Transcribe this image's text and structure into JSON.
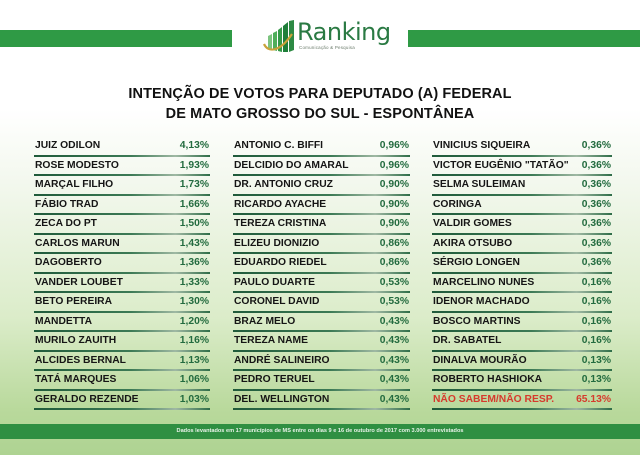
{
  "header": {
    "brand": "Ranking",
    "brand_subtitle": "Comunicação & Pesquisa",
    "colors": {
      "brand_green": "#2f9a45",
      "logo_text": "#2a7a43",
      "gold_swoosh": "#c9a23a"
    }
  },
  "title": {
    "line1": "INTENÇÃO DE VOTOS PARA DEPUTADO (A) FEDERAL",
    "line2": "DE MATO GROSSO DO SUL - ESPONTÂNEA"
  },
  "columns": [
    {
      "rows": [
        {
          "name": "JUIZ ODILON",
          "value": "4,13%"
        },
        {
          "name": "ROSE MODESTO",
          "value": "1,93%"
        },
        {
          "name": "MARÇAL FILHO",
          "value": "1,73%"
        },
        {
          "name": "FÁBIO TRAD",
          "value": "1,66%"
        },
        {
          "name": "ZECA DO PT",
          "value": "1,50%"
        },
        {
          "name": "CARLOS MARUN",
          "value": "1,43%"
        },
        {
          "name": "DAGOBERTO",
          "value": "1,36%"
        },
        {
          "name": "VANDER LOUBET",
          "value": "1,33%"
        },
        {
          "name": "BETO PEREIRA",
          "value": "1,30%"
        },
        {
          "name": "MANDETTA",
          "value": "1,20%"
        },
        {
          "name": "MURILO ZAUITH",
          "value": "1,16%"
        },
        {
          "name": "ALCIDES BERNAL",
          "value": "1,13%"
        },
        {
          "name": "TATÁ MARQUES",
          "value": "1,06%"
        },
        {
          "name": "GERALDO REZENDE",
          "value": "1,03%"
        }
      ]
    },
    {
      "rows": [
        {
          "name": "ANTONIO C. BIFFI",
          "value": "0,96%"
        },
        {
          "name": "DELCIDIO DO AMARAL",
          "value": "0,96%"
        },
        {
          "name": "DR. ANTONIO CRUZ",
          "value": "0,90%"
        },
        {
          "name": "RICARDO AYACHE",
          "value": "0,90%"
        },
        {
          "name": "TEREZA CRISTINA",
          "value": "0,90%"
        },
        {
          "name": "ELIZEU DIONIZIO",
          "value": "0,86%"
        },
        {
          "name": "EDUARDO RIEDEL",
          "value": "0,86%"
        },
        {
          "name": "PAULO DUARTE",
          "value": "0,53%"
        },
        {
          "name": "CORONEL DAVID",
          "value": "0,53%"
        },
        {
          "name": "BRAZ MELO",
          "value": "0,43%"
        },
        {
          "name": "TEREZA NAME",
          "value": "0,43%"
        },
        {
          "name": "ANDRÉ SALINEIRO",
          "value": "0,43%"
        },
        {
          "name": "PEDRO TERUEL",
          "value": "0,43%"
        },
        {
          "name": "DEL. WELLINGTON",
          "value": "0,43%"
        }
      ]
    },
    {
      "rows": [
        {
          "name": "VINICIUS SIQUEIRA",
          "value": "0,36%"
        },
        {
          "name": "VICTOR EUGÊNIO \"TATÃO\"",
          "value": "0,36%"
        },
        {
          "name": "SELMA SULEIMAN",
          "value": "0,36%"
        },
        {
          "name": "CORINGA",
          "value": "0,36%"
        },
        {
          "name": "VALDIR GOMES",
          "value": "0,36%"
        },
        {
          "name": "AKIRA OTSUBO",
          "value": "0,36%"
        },
        {
          "name": "SÉRGIO LONGEN",
          "value": "0,36%"
        },
        {
          "name": "MARCELINO NUNES",
          "value": "0,16%"
        },
        {
          "name": "IDENOR MACHADO",
          "value": "0,16%"
        },
        {
          "name": "BOSCO MARTINS",
          "value": "0,16%"
        },
        {
          "name": "DR. SABATEL",
          "value": "0,16%"
        },
        {
          "name": "DINALVA MOURÃO",
          "value": "0,13%"
        },
        {
          "name": "ROBERTO HASHIOKA",
          "value": "0,13%"
        },
        {
          "name": "NÃO SABEM/NÃO RESP.",
          "value": "65.13%"
        }
      ]
    }
  ],
  "footer": {
    "note": "Dados levantados em 17 municípios de MS entre os dias 9 e 16 de outubro de 2017 com 3.000 entrevistados"
  },
  "chart_data": {
    "type": "table",
    "title": "INTENÇÃO DE VOTOS PARA DEPUTADO (A) FEDERAL DE MATO GROSSO DO SUL - ESPONTÂNEA",
    "unit": "%",
    "categories": [
      "JUIZ ODILON",
      "ROSE MODESTO",
      "MARÇAL FILHO",
      "FÁBIO TRAD",
      "ZECA DO PT",
      "CARLOS MARUN",
      "DAGOBERTO",
      "VANDER LOUBET",
      "BETO PEREIRA",
      "MANDETTA",
      "MURILO ZAUITH",
      "ALCIDES BERNAL",
      "TATÁ MARQUES",
      "GERALDO REZENDE",
      "ANTONIO C. BIFFI",
      "DELCIDIO DO AMARAL",
      "DR. ANTONIO CRUZ",
      "RICARDO AYACHE",
      "TEREZA CRISTINA",
      "ELIZEU DIONIZIO",
      "EDUARDO RIEDEL",
      "PAULO DUARTE",
      "CORONEL DAVID",
      "BRAZ MELO",
      "TEREZA NAME",
      "ANDRÉ SALINEIRO",
      "PEDRO TERUEL",
      "DEL. WELLINGTON",
      "VINICIUS SIQUEIRA",
      "VICTOR EUGÊNIO \"TATÃO\"",
      "SELMA SULEIMAN",
      "CORINGA",
      "VALDIR GOMES",
      "AKIRA OTSUBO",
      "SÉRGIO LONGEN",
      "MARCELINO NUNES",
      "IDENOR MACHADO",
      "BOSCO MARTINS",
      "DR. SABATEL",
      "DINALVA MOURÃO",
      "ROBERTO HASHIOKA",
      "NÃO SABEM/NÃO RESP."
    ],
    "values": [
      4.13,
      1.93,
      1.73,
      1.66,
      1.5,
      1.43,
      1.36,
      1.33,
      1.3,
      1.2,
      1.16,
      1.13,
      1.06,
      1.03,
      0.96,
      0.96,
      0.9,
      0.9,
      0.9,
      0.86,
      0.86,
      0.53,
      0.53,
      0.43,
      0.43,
      0.43,
      0.43,
      0.43,
      0.36,
      0.36,
      0.36,
      0.36,
      0.36,
      0.36,
      0.36,
      0.16,
      0.16,
      0.16,
      0.16,
      0.13,
      0.13,
      65.13
    ],
    "annotation": "Dados levantados em 17 municípios de MS entre os dias 9 e 16 de outubro de 2017 com 3.000 entrevistados"
  }
}
